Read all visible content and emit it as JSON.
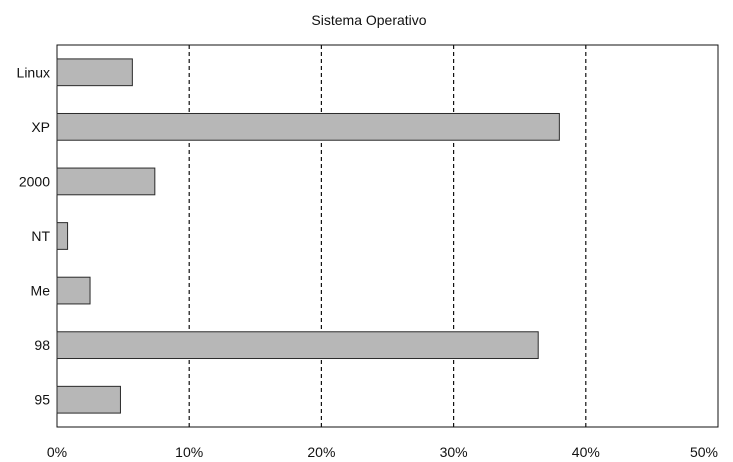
{
  "chart_data": {
    "type": "bar",
    "orientation": "horizontal",
    "title": "Sistema Operativo",
    "xlabel": "",
    "ylabel": "",
    "categories": [
      "Linux",
      "XP",
      "2000",
      "NT",
      "Me",
      "98",
      "95"
    ],
    "values": [
      5.7,
      38.0,
      7.4,
      0.8,
      2.5,
      36.4,
      4.8
    ],
    "xlim": [
      0,
      50
    ],
    "xticks": [
      0,
      10,
      20,
      30,
      40,
      50
    ],
    "xtick_labels": [
      "0%",
      "10%",
      "20%",
      "30%",
      "40%",
      "50%"
    ],
    "grid": "vertical dashed",
    "legend": "none",
    "colors": {
      "bar_fill": "#b7b7b7",
      "bar_stroke": "#2a2a2a",
      "grid": "#111111",
      "axis": "#111111",
      "background": "#ffffff"
    }
  }
}
